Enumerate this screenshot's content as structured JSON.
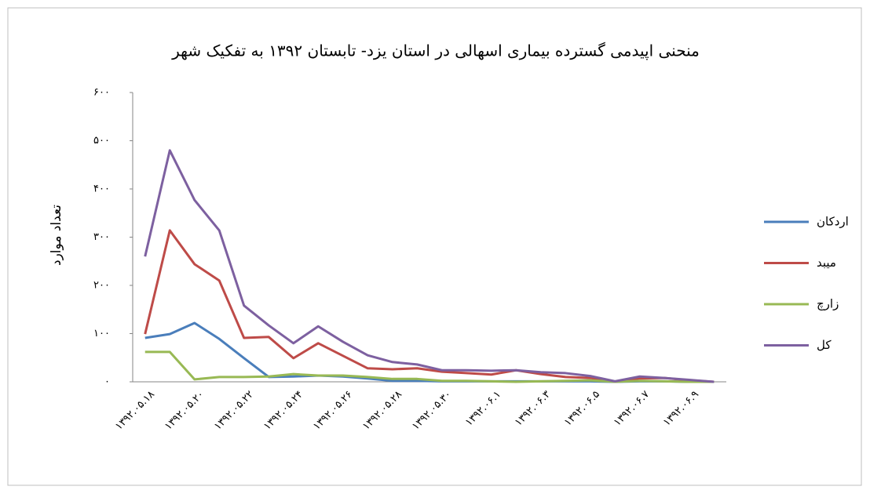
{
  "chart_data": {
    "type": "line",
    "title": "منحنی اپیدمی گسترده بیماری اسهالی در استان یزد- تابستان ۱۳۹۲ به تفکیک شهر",
    "y_label": "تعداد موارد",
    "categories": [
      "۱۳۹۲.۰۵.۱۸",
      null,
      "۱۳۹۲.۰۵.۲۰",
      null,
      "۱۳۹۲.۰۵.۲۲",
      null,
      "۱۳۹۲.۰۵.۲۴",
      null,
      "۱۳۹۲.۰۵.۲۶",
      null,
      "۱۳۹۲.۰۵.۲۸",
      null,
      "۱۳۹۲.۰۵.۳۰",
      null,
      "۱۳۹۲.۰۶.۱",
      null,
      "۱۳۹۲.۰۶.۳",
      null,
      "۱۳۹۲.۰۶.۵",
      null,
      "۱۳۹۲.۰۶.۷",
      null,
      "۱۳۹۲.۰۶.۹",
      null
    ],
    "series": [
      {
        "name": "اردکان",
        "color": "#4a7ebb",
        "values": [
          91,
          99,
          122,
          89,
          49,
          10,
          11,
          13,
          11,
          7,
          2,
          2,
          1,
          1,
          1,
          1,
          1,
          1,
          1,
          0,
          1,
          1,
          0,
          0
        ]
      },
      {
        "name": "میبد",
        "color": "#be4b48",
        "values": [
          99,
          314,
          244,
          210,
          91,
          93,
          49,
          80,
          54,
          28,
          26,
          28,
          21,
          18,
          15,
          24,
          16,
          10,
          8,
          0,
          7,
          8,
          3,
          0
        ]
      },
      {
        "name": "زارچ",
        "color": "#98b954",
        "values": [
          62,
          62,
          5,
          10,
          10,
          11,
          16,
          13,
          13,
          10,
          6,
          6,
          2,
          2,
          1,
          0,
          1,
          2,
          3,
          0,
          2,
          1,
          0,
          0
        ]
      },
      {
        "name": "کل",
        "color": "#7d60a0",
        "values": [
          260,
          480,
          377,
          314,
          158,
          117,
          80,
          115,
          83,
          55,
          41,
          36,
          24,
          24,
          23,
          24,
          20,
          18,
          12,
          1,
          11,
          8,
          4,
          0
        ]
      }
    ],
    "ylim": [
      0,
      600
    ],
    "yticks": [
      {
        "value": 0,
        "label": "۰"
      },
      {
        "value": 100,
        "label": "۱۰۰"
      },
      {
        "value": 200,
        "label": "۲۰۰"
      },
      {
        "value": 300,
        "label": "۳۰۰"
      },
      {
        "value": 400,
        "label": "۴۰۰"
      },
      {
        "value": 500,
        "label": "۵۰۰"
      },
      {
        "value": 600,
        "label": "۶۰۰"
      }
    ],
    "legend": "right"
  }
}
